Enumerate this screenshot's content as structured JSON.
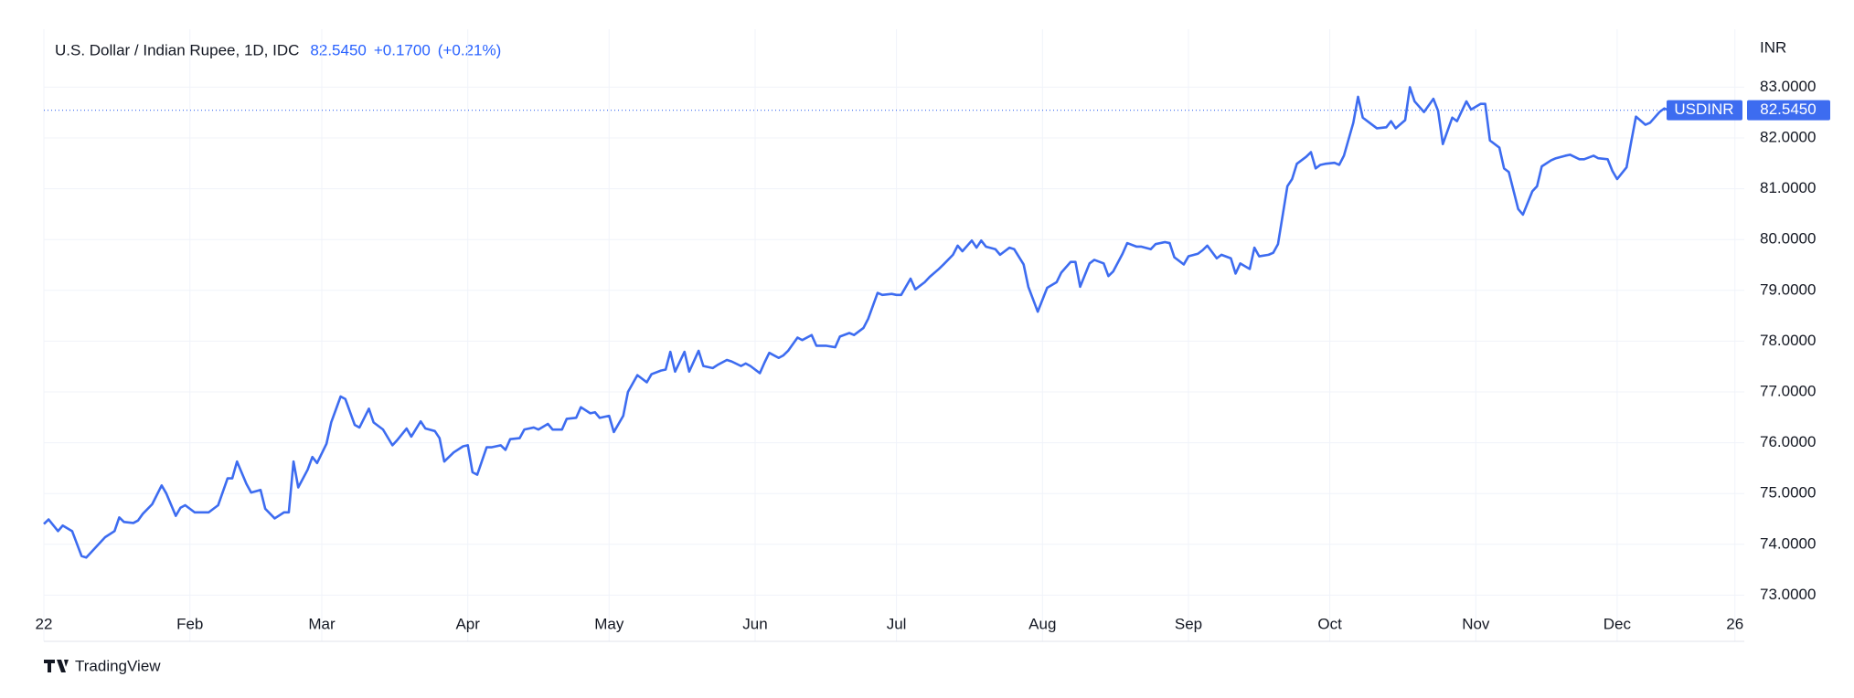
{
  "chart_data": {
    "type": "line",
    "title": "U.S. Dollar / Indian Rupee, 1D, IDC",
    "header_price": "82.5450",
    "header_change": "+0.1700",
    "header_change_percent": "(+0.21%)",
    "y_unit": "INR",
    "symbol": "USDINR",
    "brand": "TradingView",
    "grid": true,
    "xlim": [
      1,
      362
    ],
    "xticks": [
      {
        "value": 1,
        "label": "22"
      },
      {
        "value": 32,
        "label": "Feb"
      },
      {
        "value": 60,
        "label": "Mar"
      },
      {
        "value": 91,
        "label": "Apr"
      },
      {
        "value": 121,
        "label": "May"
      },
      {
        "value": 152,
        "label": "Jun"
      },
      {
        "value": 182,
        "label": "Jul"
      },
      {
        "value": 213,
        "label": "Aug"
      },
      {
        "value": 244,
        "label": "Sep"
      },
      {
        "value": 274,
        "label": "Oct"
      },
      {
        "value": 305,
        "label": "Nov"
      },
      {
        "value": 335,
        "label": "Dec"
      },
      {
        "value": 360,
        "label": "26"
      }
    ],
    "ylim": [
      72.09,
      84.14
    ],
    "yticks": [
      {
        "value": 73,
        "label": "73.0000"
      },
      {
        "value": 74,
        "label": "74.0000"
      },
      {
        "value": 75,
        "label": "75.0000"
      },
      {
        "value": 76,
        "label": "76.0000"
      },
      {
        "value": 77,
        "label": "77.0000"
      },
      {
        "value": 78,
        "label": "78.0000"
      },
      {
        "value": 79,
        "label": "79.0000"
      },
      {
        "value": 80,
        "label": "80.0000"
      },
      {
        "value": 81,
        "label": "81.0000"
      },
      {
        "value": 82,
        "label": "82.0000"
      },
      {
        "value": 83,
        "label": "83.0000"
      }
    ],
    "series": [
      {
        "name": "USDINR",
        "color": "#3d6cf0",
        "x": [
          1,
          2,
          4,
          5,
          7,
          9,
          10,
          14,
          16,
          17,
          18,
          20,
          21,
          22,
          24,
          26,
          27,
          29,
          30,
          31,
          33,
          36,
          38,
          40,
          41,
          42,
          44,
          45,
          47,
          48,
          50,
          52,
          53,
          54,
          55,
          57,
          58,
          59,
          61,
          62,
          64,
          65,
          67,
          68,
          70,
          71,
          73,
          75,
          76,
          78,
          79,
          81,
          82,
          84,
          85,
          86,
          88,
          90,
          91,
          92,
          93,
          95,
          96,
          98,
          99,
          100,
          102,
          103,
          105,
          106,
          108,
          109,
          111,
          112,
          114,
          115,
          117,
          118,
          119,
          121,
          122,
          124,
          125,
          127,
          129,
          130,
          132,
          133,
          134,
          135,
          137,
          138,
          140,
          141,
          143,
          144,
          146,
          147,
          149,
          150,
          151,
          153,
          154,
          155,
          157,
          158,
          159,
          161,
          162,
          164,
          165,
          167,
          169,
          170,
          172,
          173,
          175,
          176,
          178,
          179,
          181,
          182,
          183,
          185,
          186,
          188,
          189,
          191,
          192,
          194,
          195,
          196,
          198,
          199,
          200,
          201,
          203,
          204,
          206,
          207,
          209,
          210,
          212,
          214,
          216,
          217,
          219,
          220,
          221,
          223,
          224,
          226,
          227,
          228,
          230,
          231,
          233,
          234,
          236,
          237,
          239,
          240,
          241,
          243,
          244,
          246,
          247,
          248,
          250,
          251,
          253,
          254,
          255,
          257,
          258,
          259,
          261,
          262,
          263,
          265,
          266,
          267,
          269,
          270,
          271,
          272,
          273,
          275,
          276,
          277,
          279,
          280,
          281,
          283,
          284,
          286,
          287,
          288,
          290,
          291,
          292,
          294,
          296,
          297,
          298,
          300,
          301,
          303,
          304,
          306,
          307,
          308,
          310,
          311,
          312,
          314,
          315,
          317,
          318,
          319,
          321,
          322,
          324,
          325,
          327,
          328,
          330,
          331,
          333,
          334,
          335,
          337,
          338,
          339,
          341,
          342,
          344,
          345,
          346
        ],
        "values": [
          74.4,
          74.49,
          74.26,
          74.37,
          74.26,
          73.77,
          73.74,
          74.14,
          74.26,
          74.53,
          74.44,
          74.42,
          74.47,
          74.6,
          74.79,
          75.16,
          75.0,
          74.56,
          74.72,
          74.77,
          74.63,
          74.63,
          74.77,
          75.3,
          75.3,
          75.63,
          75.19,
          75.02,
          75.07,
          74.7,
          74.51,
          74.63,
          74.63,
          75.63,
          75.12,
          75.47,
          75.72,
          75.6,
          75.98,
          76.4,
          76.91,
          76.86,
          76.35,
          76.3,
          76.67,
          76.4,
          76.26,
          75.95,
          76.05,
          76.28,
          76.12,
          76.42,
          76.28,
          76.23,
          76.09,
          75.63,
          75.81,
          75.93,
          75.95,
          75.42,
          75.37,
          75.91,
          75.91,
          75.95,
          75.86,
          76.07,
          76.09,
          76.26,
          76.3,
          76.26,
          76.37,
          76.26,
          76.26,
          76.47,
          76.49,
          76.7,
          76.58,
          76.6,
          76.49,
          76.53,
          76.21,
          76.53,
          77.0,
          77.33,
          77.19,
          77.35,
          77.42,
          77.44,
          77.79,
          77.4,
          77.79,
          77.4,
          77.81,
          77.51,
          77.47,
          77.53,
          77.63,
          77.6,
          77.51,
          77.56,
          77.51,
          77.37,
          77.58,
          77.77,
          77.67,
          77.72,
          77.81,
          78.07,
          78.02,
          78.12,
          77.91,
          77.91,
          77.88,
          78.09,
          78.16,
          78.12,
          78.26,
          78.44,
          78.95,
          78.91,
          78.93,
          78.91,
          78.91,
          79.23,
          79.02,
          79.16,
          79.26,
          79.42,
          79.51,
          79.7,
          79.88,
          79.77,
          79.98,
          79.84,
          79.98,
          79.86,
          79.81,
          79.7,
          79.84,
          79.81,
          79.51,
          79.07,
          78.58,
          79.05,
          79.16,
          79.35,
          79.56,
          79.56,
          79.07,
          79.53,
          79.6,
          79.53,
          79.28,
          79.37,
          79.72,
          79.93,
          79.86,
          79.86,
          79.81,
          79.91,
          79.95,
          79.93,
          79.65,
          79.51,
          79.67,
          79.72,
          79.79,
          79.88,
          79.63,
          79.7,
          79.63,
          79.33,
          79.53,
          79.42,
          79.84,
          79.67,
          79.7,
          79.74,
          79.91,
          81.05,
          81.19,
          81.49,
          81.63,
          81.72,
          81.4,
          81.47,
          81.49,
          81.51,
          81.47,
          81.65,
          82.3,
          82.81,
          82.4,
          82.26,
          82.19,
          82.21,
          82.33,
          82.19,
          82.35,
          83.0,
          82.72,
          82.51,
          82.77,
          82.53,
          81.88,
          82.4,
          82.33,
          82.72,
          82.56,
          82.67,
          82.67,
          81.95,
          81.81,
          81.4,
          81.33,
          80.6,
          80.49,
          80.95,
          81.05,
          81.44,
          81.56,
          81.6,
          81.65,
          81.67,
          81.58,
          81.58,
          81.65,
          81.6,
          81.58,
          81.35,
          81.19,
          81.42,
          81.93,
          82.42,
          82.26,
          82.3,
          82.51,
          82.58,
          82.545
        ]
      }
    ]
  }
}
